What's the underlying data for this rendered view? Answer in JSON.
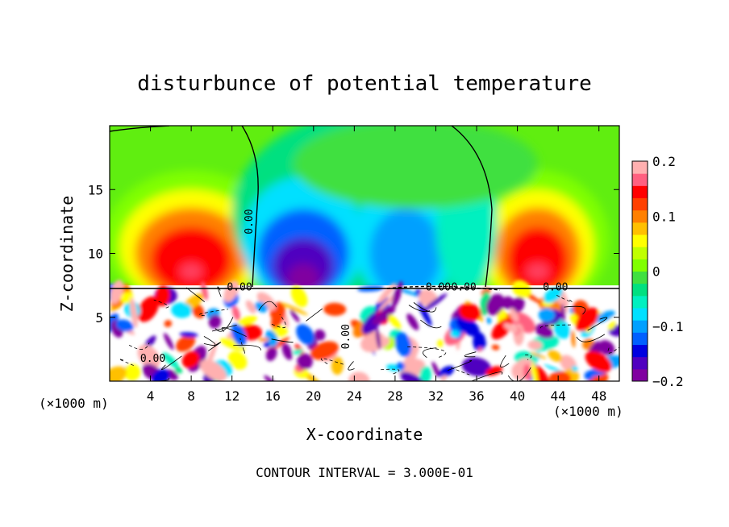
{
  "chart_data": {
    "type": "heatmap",
    "title": "disturbunce of potential temperature",
    "xlabel": "X-coordinate",
    "ylabel": "Z-coordinate",
    "x_unit": "(×1000 m)",
    "z_unit": "(×1000 m)",
    "xlim": [
      0,
      50
    ],
    "ylim": [
      0,
      20
    ],
    "x_ticks": [
      4,
      8,
      12,
      16,
      20,
      24,
      28,
      32,
      36,
      40,
      44,
      48
    ],
    "y_ticks": [
      5,
      10,
      15
    ],
    "colorbar": {
      "range": [
        -0.2,
        0.2
      ],
      "tick_values": [
        0.2,
        0.1,
        0,
        -0.1,
        -0.2
      ],
      "tick_labels": [
        "0.2",
        "0.1",
        "0",
        "−0.1",
        "−0.2"
      ],
      "colors": [
        "#8000a0",
        "#5000c0",
        "#0000e0",
        "#0060ff",
        "#00a0ff",
        "#00e0ff",
        "#00f0c0",
        "#00e080",
        "#40e040",
        "#80ff00",
        "#c0ff00",
        "#ffff00",
        "#ffc000",
        "#ff8000",
        "#ff4000",
        "#ff0000",
        "#ff6080",
        "#ffb0b0"
      ]
    },
    "contour_label": "0.00",
    "contour_interval_text": "CONTOUR INTERVAL = 3.000E-01",
    "features": [
      {
        "x": 8,
        "z": 10,
        "value": 0.15
      },
      {
        "x": 42,
        "z": 10,
        "value": 0.15
      },
      {
        "x": 19,
        "z": 10,
        "value": -0.2
      },
      {
        "x": 29,
        "z": 10,
        "value": -0.15
      },
      {
        "x": 35,
        "z": 12,
        "value": -0.08
      }
    ]
  }
}
